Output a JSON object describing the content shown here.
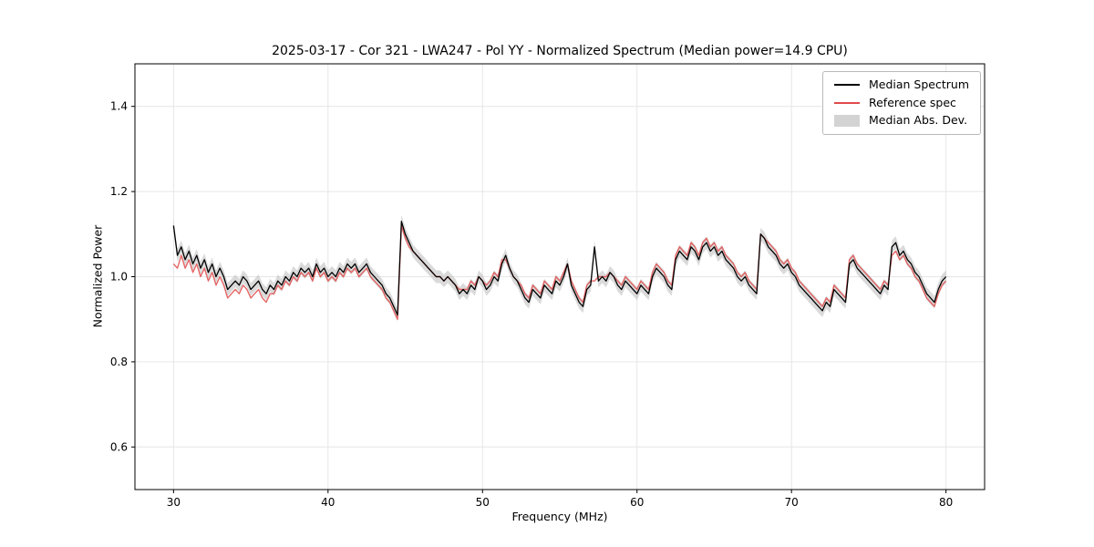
{
  "chart_data": {
    "type": "line",
    "title": "2025-03-17 - Cor 321 - LWA247 - Pol YY - Normalized Spectrum (Median power=14.9 CPU)",
    "xlabel": "Frequency (MHz)",
    "ylabel": "Normalized Power",
    "xlim": [
      27.5,
      82.5
    ],
    "ylim": [
      0.5,
      1.5
    ],
    "xticks": [
      30,
      40,
      50,
      60,
      70,
      80
    ],
    "xtick_labels": [
      "30",
      "40",
      "50",
      "60",
      "70",
      "80"
    ],
    "yticks": [
      0.6,
      0.8,
      1.0,
      1.2,
      1.4
    ],
    "ytick_labels": [
      "0.6",
      "0.8",
      "1.0",
      "1.2",
      "1.4"
    ],
    "grid": true,
    "legend_position": "upper right",
    "x_start": 30.0,
    "x_step": 0.25,
    "series": [
      {
        "name": "Median Spectrum",
        "color": "#000000",
        "values": [
          1.12,
          1.05,
          1.07,
          1.04,
          1.06,
          1.03,
          1.05,
          1.02,
          1.04,
          1.01,
          1.03,
          1.0,
          1.02,
          1.0,
          0.97,
          0.98,
          0.99,
          0.98,
          1.0,
          0.99,
          0.97,
          0.98,
          0.99,
          0.97,
          0.96,
          0.98,
          0.97,
          0.99,
          0.98,
          1.0,
          0.99,
          1.01,
          1.0,
          1.02,
          1.01,
          1.02,
          1.0,
          1.03,
          1.01,
          1.02,
          1.0,
          1.01,
          1.0,
          1.02,
          1.01,
          1.03,
          1.02,
          1.03,
          1.01,
          1.02,
          1.03,
          1.01,
          1.0,
          0.99,
          0.98,
          0.96,
          0.95,
          0.93,
          0.91,
          1.13,
          1.1,
          1.08,
          1.06,
          1.05,
          1.04,
          1.03,
          1.02,
          1.01,
          1.0,
          1.0,
          0.99,
          1.0,
          0.99,
          0.98,
          0.96,
          0.97,
          0.96,
          0.98,
          0.97,
          1.0,
          0.99,
          0.97,
          0.98,
          1.0,
          0.99,
          1.03,
          1.05,
          1.02,
          1.0,
          0.99,
          0.97,
          0.95,
          0.94,
          0.97,
          0.96,
          0.95,
          0.98,
          0.97,
          0.96,
          0.99,
          0.98,
          1.0,
          1.03,
          0.98,
          0.96,
          0.94,
          0.93,
          0.97,
          0.98,
          1.07,
          0.99,
          1.0,
          0.99,
          1.01,
          1.0,
          0.98,
          0.97,
          0.99,
          0.98,
          0.97,
          0.96,
          0.98,
          0.97,
          0.96,
          1.0,
          1.02,
          1.01,
          1.0,
          0.98,
          0.97,
          1.04,
          1.06,
          1.05,
          1.04,
          1.07,
          1.06,
          1.04,
          1.07,
          1.08,
          1.06,
          1.07,
          1.05,
          1.06,
          1.04,
          1.03,
          1.02,
          1.0,
          0.99,
          1.0,
          0.98,
          0.97,
          0.96,
          1.1,
          1.09,
          1.07,
          1.06,
          1.05,
          1.03,
          1.02,
          1.03,
          1.01,
          1.0,
          0.98,
          0.97,
          0.96,
          0.95,
          0.94,
          0.93,
          0.92,
          0.94,
          0.93,
          0.97,
          0.96,
          0.95,
          0.94,
          1.03,
          1.04,
          1.02,
          1.01,
          1.0,
          0.99,
          0.98,
          0.97,
          0.96,
          0.98,
          0.97,
          1.07,
          1.08,
          1.05,
          1.06,
          1.04,
          1.03,
          1.01,
          1.0,
          0.98,
          0.96,
          0.95,
          0.94,
          0.97,
          0.99,
          1.0
        ]
      },
      {
        "name": "Reference spec",
        "color": "#e04b4b",
        "values": [
          1.03,
          1.02,
          1.05,
          1.02,
          1.04,
          1.01,
          1.03,
          1.0,
          1.02,
          0.99,
          1.01,
          0.98,
          1.0,
          0.98,
          0.95,
          0.96,
          0.97,
          0.96,
          0.98,
          0.97,
          0.95,
          0.96,
          0.97,
          0.95,
          0.94,
          0.96,
          0.96,
          0.98,
          0.97,
          0.99,
          0.98,
          1.0,
          0.99,
          1.01,
          1.0,
          1.01,
          0.99,
          1.02,
          1.0,
          1.01,
          0.99,
          1.0,
          0.99,
          1.01,
          1.0,
          1.02,
          1.01,
          1.02,
          1.0,
          1.01,
          1.02,
          1.0,
          0.99,
          0.98,
          0.97,
          0.95,
          0.94,
          0.92,
          0.9,
          1.12,
          1.09,
          1.07,
          1.06,
          1.05,
          1.04,
          1.03,
          1.02,
          1.01,
          1.0,
          1.0,
          0.99,
          1.0,
          0.99,
          0.98,
          0.97,
          0.97,
          0.97,
          0.99,
          0.98,
          1.0,
          0.99,
          0.98,
          0.99,
          1.01,
          1.0,
          1.04,
          1.04,
          1.02,
          1.0,
          0.99,
          0.98,
          0.96,
          0.95,
          0.98,
          0.97,
          0.96,
          0.99,
          0.98,
          0.97,
          1.0,
          0.99,
          1.01,
          1.03,
          0.99,
          0.97,
          0.95,
          0.94,
          0.98,
          0.99,
          0.99,
          1.0,
          1.0,
          1.0,
          1.01,
          1.0,
          0.99,
          0.98,
          1.0,
          0.99,
          0.98,
          0.97,
          0.99,
          0.98,
          0.97,
          1.01,
          1.03,
          1.02,
          1.01,
          0.99,
          0.98,
          1.05,
          1.07,
          1.06,
          1.05,
          1.08,
          1.07,
          1.05,
          1.08,
          1.09,
          1.07,
          1.08,
          1.06,
          1.07,
          1.05,
          1.04,
          1.03,
          1.01,
          1.0,
          1.01,
          0.99,
          0.98,
          0.97,
          1.1,
          1.09,
          1.08,
          1.07,
          1.06,
          1.04,
          1.03,
          1.04,
          1.02,
          1.01,
          0.99,
          0.98,
          0.97,
          0.96,
          0.95,
          0.94,
          0.93,
          0.95,
          0.94,
          0.98,
          0.97,
          0.96,
          0.95,
          1.04,
          1.05,
          1.03,
          1.02,
          1.01,
          1.0,
          0.99,
          0.98,
          0.97,
          0.99,
          0.98,
          1.05,
          1.06,
          1.04,
          1.05,
          1.03,
          1.02,
          1.0,
          0.99,
          0.97,
          0.95,
          0.94,
          0.93,
          0.96,
          0.98,
          0.99
        ]
      }
    ],
    "band": {
      "name": "Median Abs. Dev.",
      "color": "#bbbbbb",
      "halfwidth": 0.015,
      "around": "Median Spectrum"
    }
  }
}
